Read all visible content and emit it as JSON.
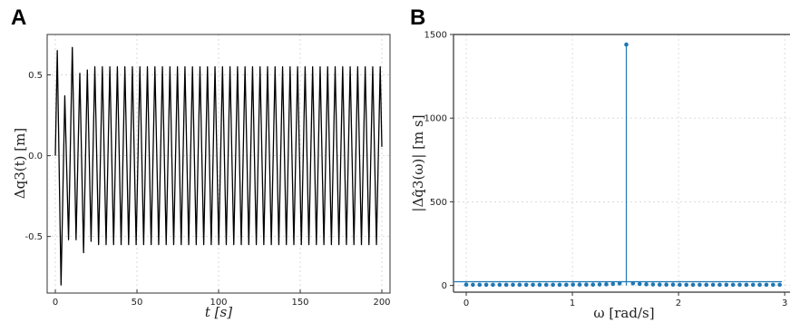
{
  "chart_data": [
    {
      "panel": "A",
      "type": "line",
      "xlabel": "t [s]",
      "ylabel": "Δq3(t) [m]",
      "xlim": [
        -5,
        205
      ],
      "ylim": [
        -0.85,
        0.75
      ],
      "xticks": [
        0,
        50,
        100,
        150,
        200
      ],
      "xtick_labels": [
        "0",
        "50",
        "100",
        "150",
        "200"
      ],
      "yticks": [
        0.5,
        0.0,
        -0.5
      ],
      "ytick_labels": [
        "0.5",
        "0.0",
        "-0.5"
      ],
      "grid": true,
      "line_color": "#000000",
      "oscillation": {
        "period_s": 4.6,
        "steady_amplitude_m": 0.55,
        "t_end": 200,
        "transient_peaks": [
          0.65,
          -0.8,
          0.37,
          -0.52,
          0.67,
          -0.52,
          0.51,
          -0.6,
          0.53,
          -0.53
        ]
      }
    },
    {
      "panel": "B",
      "type": "stem",
      "xlabel": "ω [rad/s]",
      "ylabel": "|Δq̂3(ω)| [m s]",
      "xlim": [
        -0.12,
        3.05
      ],
      "ylim": [
        -40,
        1500
      ],
      "xticks": [
        0,
        1,
        2,
        3
      ],
      "xtick_labels": [
        "0",
        "1",
        "2",
        "3"
      ],
      "yticks": [
        0,
        500,
        1000,
        1500
      ],
      "ytick_labels": [
        "0",
        "500",
        "1000",
        "1500"
      ],
      "grid": true,
      "stem_color": "#1f77b4",
      "x": [
        0.0,
        0.0628,
        0.1257,
        0.1885,
        0.2513,
        0.3142,
        0.377,
        0.4398,
        0.5027,
        0.5655,
        0.6283,
        0.6912,
        0.754,
        0.8168,
        0.8796,
        0.9425,
        1.0053,
        1.0681,
        1.131,
        1.1938,
        1.2566,
        1.3195,
        1.3823,
        1.4451,
        1.508,
        1.5708,
        1.6336,
        1.6965,
        1.7593,
        1.8221,
        1.885,
        1.9478,
        2.0106,
        2.0735,
        2.1363,
        2.1991,
        2.2619,
        2.3248,
        2.3876,
        2.4504,
        2.5133,
        2.5761,
        2.6389,
        2.7018,
        2.7646,
        2.8274,
        2.8903,
        2.9531
      ],
      "y": [
        5,
        4,
        4,
        4,
        4,
        4,
        4,
        4,
        4,
        4,
        4,
        4,
        4,
        4,
        4,
        4,
        5,
        5,
        5,
        5,
        6,
        7,
        9,
        12,
        1440,
        13,
        9,
        7,
        6,
        5,
        5,
        5,
        4,
        4,
        4,
        4,
        4,
        4,
        4,
        4,
        4,
        4,
        4,
        4,
        4,
        4,
        4,
        4
      ]
    }
  ]
}
